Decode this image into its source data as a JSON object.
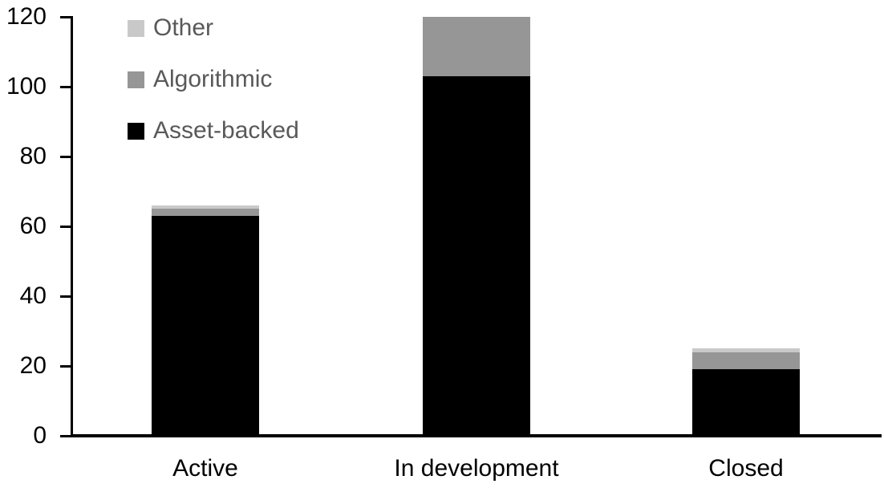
{
  "chart_data": {
    "type": "bar",
    "stacked": true,
    "title": "",
    "xlabel": "",
    "ylabel": "",
    "categories": [
      "Active",
      "In development",
      "Closed"
    ],
    "series": [
      {
        "name": "Asset-backed",
        "color": "#000000",
        "values": [
          63,
          103,
          19
        ]
      },
      {
        "name": "Algorithmic",
        "color": "#969696",
        "values": [
          2,
          17,
          5
        ]
      },
      {
        "name": "Other",
        "color": "#c9c9c9",
        "values": [
          1,
          0,
          1
        ]
      }
    ],
    "totals": [
      66,
      120,
      25
    ],
    "y_axis": {
      "min": 0,
      "max": 120,
      "tick_interval": 20,
      "ticks": [
        0,
        20,
        40,
        60,
        80,
        100,
        120
      ]
    },
    "grid": false,
    "legend": {
      "position": "top-left-inside",
      "order": [
        "Other",
        "Algorithmic",
        "Asset-backed"
      ],
      "text_color": "#595959"
    },
    "colors": {
      "axis": "#000000",
      "tick_labels": "#000000",
      "category_labels": "#000000",
      "background": "#ffffff"
    }
  }
}
